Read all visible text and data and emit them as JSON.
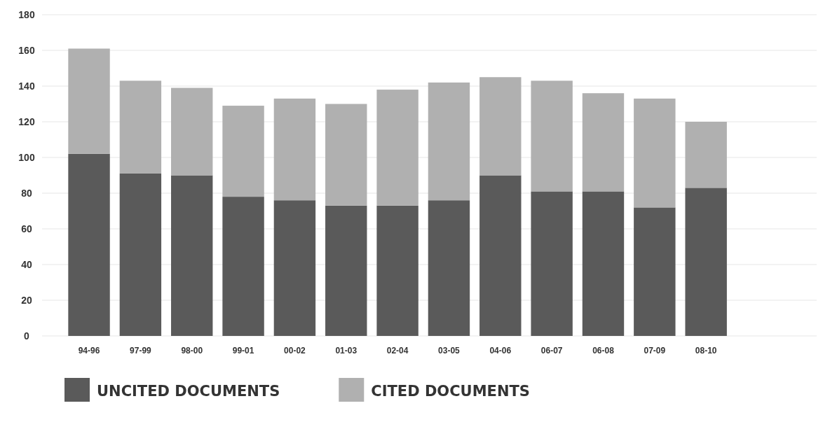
{
  "chart_data": {
    "type": "bar",
    "stacked": true,
    "categories": [
      "94-96",
      "97-99",
      "98-00",
      "99-01",
      "00-02",
      "01-03",
      "02-04",
      "03-05",
      "04-06",
      "06-07",
      "06-08",
      "07-09",
      "08-10"
    ],
    "series": [
      {
        "name": "UNCITED DOCUMENTS",
        "color": "#5a5a5a",
        "values": [
          102,
          91,
          90,
          78,
          76,
          73,
          73,
          76,
          90,
          81,
          81,
          72,
          83
        ]
      },
      {
        "name": "CITED DOCUMENTS",
        "color": "#b0b0b0",
        "values": [
          59,
          52,
          49,
          51,
          57,
          57,
          65,
          66,
          55,
          62,
          55,
          61,
          37
        ]
      }
    ],
    "ylim": [
      0,
      180
    ],
    "yticks": [
      0,
      20,
      40,
      60,
      80,
      100,
      120,
      140,
      160,
      180
    ],
    "grid": "y",
    "legend": "bottom"
  }
}
